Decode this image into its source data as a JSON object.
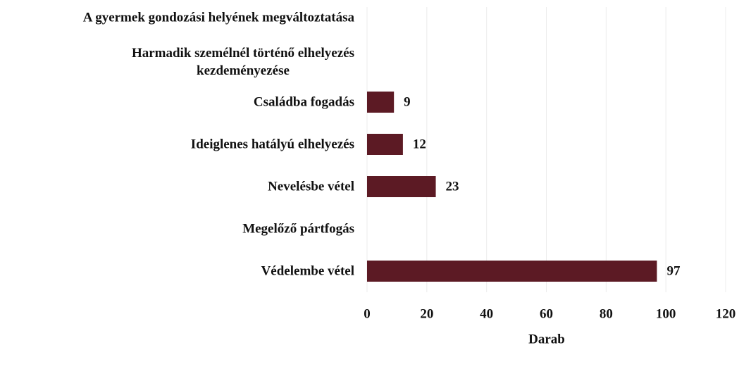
{
  "chart_data": {
    "type": "bar",
    "orientation": "horizontal",
    "categories": [
      "A gyermek gondozási helyének megváltoztatása",
      "Harmadik személnél történő elhelyezés\nkezdeményezése",
      "Családba fogadás",
      "Ideiglenes hatályú elhelyezés",
      "Nevelésbe vétel",
      "Megelőző pártfogás",
      "Védelembe vétel"
    ],
    "values": [
      null,
      null,
      9,
      12,
      23,
      null,
      97
    ],
    "color": "#5c1a24",
    "x_label": "Darab",
    "xlim": [
      0,
      120
    ],
    "xticks": [
      0,
      20,
      40,
      60,
      80,
      100,
      120
    ],
    "grid": true
  }
}
